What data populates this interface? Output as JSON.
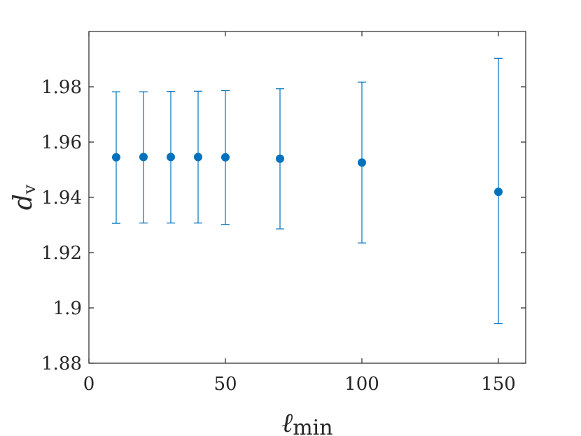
{
  "chart_data": {
    "type": "scatter",
    "xlabel": "ℓ",
    "xlabel_sub": "min",
    "ylabel": "d",
    "ylabel_sub": "v",
    "xlim": [
      0,
      160
    ],
    "ylim": [
      1.88,
      2.0
    ],
    "xticks": [
      0,
      50,
      100,
      150
    ],
    "xtick_labels": [
      "0",
      "50",
      "100",
      "150"
    ],
    "yticks": [
      1.88,
      1.9,
      1.92,
      1.94,
      1.96,
      1.98
    ],
    "ytick_labels": [
      "1.88",
      "1.9",
      "1.92",
      "1.94",
      "1.96",
      "1.98"
    ],
    "grid": false,
    "marker_color": "#0072BD",
    "series": [
      {
        "x": [
          10,
          20,
          30,
          40,
          50,
          70,
          100,
          150
        ],
        "y": [
          1.9545,
          1.9546,
          1.9546,
          1.9546,
          1.9545,
          1.954,
          1.9526,
          1.942
        ],
        "y_low": [
          1.9306,
          1.9307,
          1.9307,
          1.9307,
          1.9302,
          1.9286,
          1.9235,
          1.8943
        ],
        "y_high": [
          1.9782,
          1.9782,
          1.9783,
          1.9784,
          1.9786,
          1.9793,
          1.9817,
          1.9903
        ]
      }
    ]
  }
}
